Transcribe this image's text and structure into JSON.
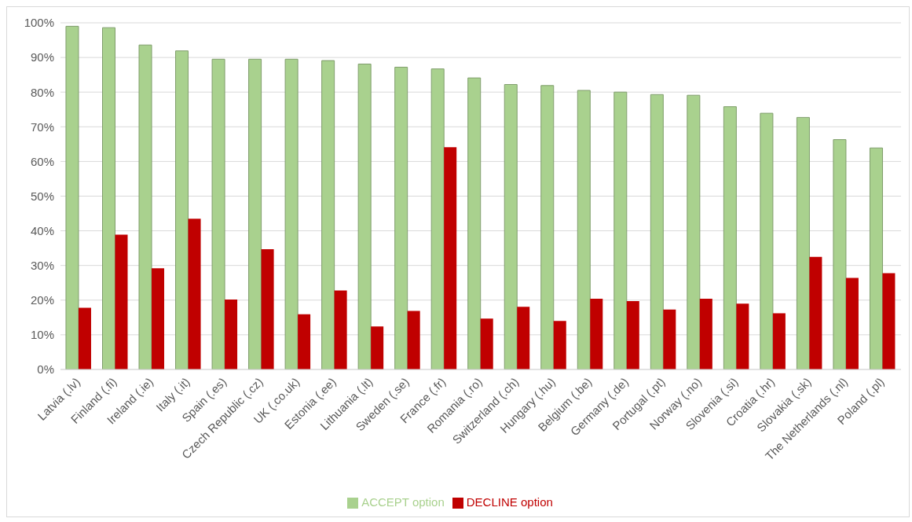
{
  "chart_data": {
    "type": "bar",
    "categories": [
      "Latvia (.lv)",
      "Finland (.fi)",
      "Ireland (.ie)",
      "Italy (.it)",
      "Spain (.es)",
      "Czech Republic (.cz)",
      "UK (.co.uk)",
      "Estonia (.ee)",
      "Lithuania (.lt)",
      "Sweden (.se)",
      "France (.fr)",
      "Romania (.ro)",
      "Switzerland (.ch)",
      "Hungary (.hu)",
      "Belgium (.be)",
      "Germany (.de)",
      "Portugal (.pt)",
      "Norway (.no)",
      "Slovenia (.si)",
      "Croatia (.hr)",
      "Slovakia (.sk)",
      "The Netherlands (.nl)",
      "Poland (.pl)"
    ],
    "series": [
      {
        "name": "ACCEPT option",
        "color": "#a9d18e",
        "values": [
          99,
          98.6,
          93.6,
          91.9,
          89.5,
          89.5,
          89.5,
          89.1,
          88.1,
          87.2,
          86.7,
          84.1,
          82.2,
          81.9,
          80.5,
          80,
          79.3,
          79.1,
          75.8,
          73.9,
          72.7,
          66.3,
          63.9
        ]
      },
      {
        "name": "DECLINE option",
        "color": "#c00000",
        "values": [
          17.8,
          38.9,
          29.2,
          43.5,
          20.2,
          34.7,
          15.9,
          22.8,
          12.4,
          16.9,
          64.1,
          14.7,
          18.1,
          14,
          20.4,
          19.7,
          17.3,
          20.4,
          19,
          16.2,
          32.5,
          26.4,
          27.8
        ]
      }
    ],
    "ylim": [
      0,
      100
    ],
    "yticks": [
      {
        "value": 0,
        "label": "0%"
      },
      {
        "value": 10,
        "label": "10%"
      },
      {
        "value": 20,
        "label": "20%"
      },
      {
        "value": 30,
        "label": "30%"
      },
      {
        "value": 40,
        "label": "40%"
      },
      {
        "value": 50,
        "label": "50%"
      },
      {
        "value": 60,
        "label": "60%"
      },
      {
        "value": 70,
        "label": "70%"
      },
      {
        "value": 80,
        "label": "80%"
      },
      {
        "value": 90,
        "label": "90%"
      },
      {
        "value": 100,
        "label": "100%"
      }
    ],
    "grid": "y",
    "legend": "bottom"
  }
}
